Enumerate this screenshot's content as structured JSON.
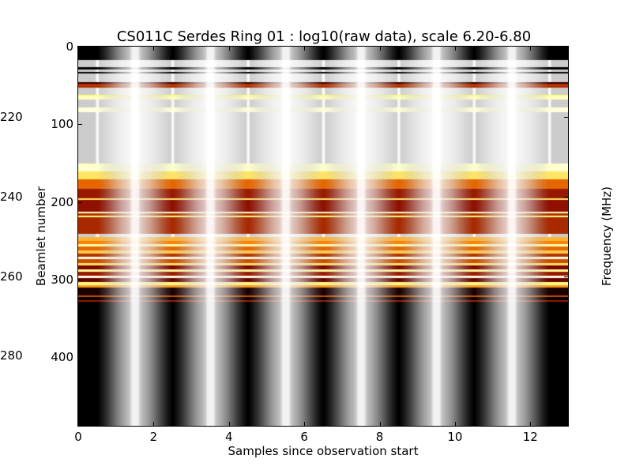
{
  "chart_data": {
    "type": "heatmap",
    "title": "CS011C Serdes Ring 01 : log10(raw data), scale 6.20-6.80",
    "xlabel": "Samples since observation start",
    "ylabel": "Beamlet number",
    "y2label": "Frequency (MHz)",
    "xlim": [
      0,
      13
    ],
    "ylim": [
      488,
      0
    ],
    "xticks": [
      "0",
      "2",
      "4",
      "6",
      "8",
      "10",
      "12"
    ],
    "yticks": [
      "0",
      "100",
      "200",
      "300",
      "400"
    ],
    "y2ticks": [
      "220",
      "240",
      "260",
      "280"
    ],
    "frequency_start_mhz": 202.3,
    "frequency_step_mhz": 0.1953,
    "colormap": "afmhot",
    "color_scale": [
      6.2,
      6.8
    ],
    "row_levels": [
      [
        0,
        17,
        0.0
      ],
      [
        17,
        26,
        1.0
      ],
      [
        26,
        29,
        0.0
      ],
      [
        29,
        32,
        1.0
      ],
      [
        32,
        34,
        0.0
      ],
      [
        34,
        45,
        1.0
      ],
      [
        45,
        47,
        0.1
      ],
      [
        47,
        52,
        0.35
      ],
      [
        52,
        62,
        1.0
      ],
      [
        62,
        64,
        0.75
      ],
      [
        64,
        68,
        0.88
      ],
      [
        68,
        78,
        1.0
      ],
      [
        78,
        84,
        0.93
      ],
      [
        84,
        150,
        1.0
      ],
      [
        150,
        160,
        0.9
      ],
      [
        160,
        170,
        0.7
      ],
      [
        170,
        182,
        0.45
      ],
      [
        182,
        195,
        0.3
      ],
      [
        195,
        197,
        0.7
      ],
      [
        197,
        212,
        0.28
      ],
      [
        212,
        214,
        0.9
      ],
      [
        214,
        217,
        0.35
      ],
      [
        217,
        219,
        0.75
      ],
      [
        219,
        240,
        0.33
      ],
      [
        240,
        245,
        1.0
      ],
      [
        245,
        250,
        0.6
      ],
      [
        250,
        254,
        0.5
      ],
      [
        254,
        257,
        0.85
      ],
      [
        257,
        262,
        0.45
      ],
      [
        262,
        266,
        0.65
      ],
      [
        266,
        270,
        0.35
      ],
      [
        270,
        273,
        0.95
      ],
      [
        273,
        278,
        0.4
      ],
      [
        278,
        281,
        0.7
      ],
      [
        281,
        286,
        0.25
      ],
      [
        286,
        289,
        0.8
      ],
      [
        289,
        294,
        0.3
      ],
      [
        294,
        297,
        0.95
      ],
      [
        297,
        302,
        0.2
      ],
      [
        302,
        307,
        0.75
      ],
      [
        307,
        310,
        0.55
      ],
      [
        310,
        320,
        0.05
      ],
      [
        320,
        322,
        0.4
      ],
      [
        322,
        326,
        0.0
      ],
      [
        326,
        328,
        0.3
      ],
      [
        328,
        488,
        0.0
      ]
    ],
    "column_pattern": {
      "period_samples": 2,
      "dark_phase": 0.5,
      "edge_dark_after": 12.5
    }
  }
}
